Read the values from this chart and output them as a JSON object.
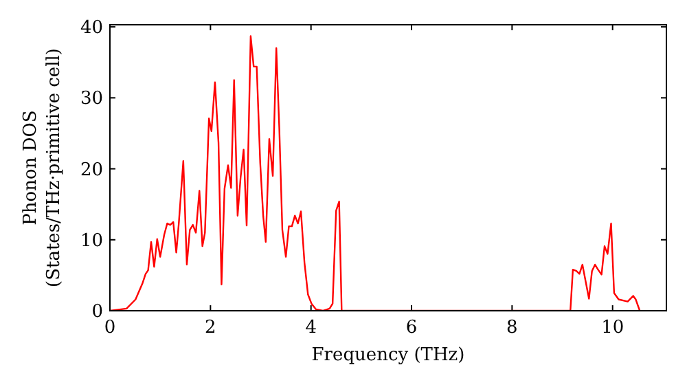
{
  "chart_data": {
    "type": "line",
    "xlabel": "Frequency (THz)",
    "ylabel": "Phonon DOS\n(States/THz·primitive cell)",
    "xlim": [
      0,
      11.07
    ],
    "ylim": [
      0,
      40.3
    ],
    "xticks": [
      0,
      2,
      4,
      6,
      8,
      10
    ],
    "yticks": [
      0,
      10,
      20,
      30,
      40
    ],
    "grid": false,
    "marker": "none",
    "line_style": "solid",
    "series": [
      {
        "color": "#ff0000",
        "x": [
          0,
          0.33,
          0.51,
          0.65,
          0.71,
          0.76,
          0.82,
          0.88,
          0.94,
          1.0,
          1.08,
          1.14,
          1.2,
          1.26,
          1.32,
          1.37,
          1.46,
          1.53,
          1.59,
          1.65,
          1.71,
          1.78,
          1.84,
          1.89,
          1.97,
          2.02,
          2.09,
          2.16,
          2.22,
          2.28,
          2.35,
          2.41,
          2.47,
          2.54,
          2.6,
          2.66,
          2.72,
          2.8,
          2.86,
          2.92,
          2.99,
          3.05,
          3.1,
          3.17,
          3.24,
          3.31,
          3.37,
          3.43,
          3.5,
          3.56,
          3.62,
          3.68,
          3.74,
          3.8,
          3.87,
          3.94,
          4.01,
          4.1,
          4.24,
          4.37,
          4.43,
          4.5,
          4.56,
          4.61,
          9.16,
          9.21,
          9.28,
          9.34,
          9.4,
          9.53,
          9.59,
          9.65,
          9.71,
          9.78,
          9.84,
          9.9,
          9.97,
          10.03,
          10.12,
          10.3,
          10.41,
          10.46,
          10.54
        ],
        "values": [
          0,
          0.3,
          1.6,
          3.9,
          5.2,
          5.7,
          9.7,
          6.2,
          10.1,
          7.6,
          10.7,
          12.3,
          12.1,
          12.5,
          8.2,
          12.3,
          21.1,
          6.5,
          11.4,
          12.1,
          11.0,
          16.9,
          9.1,
          11.0,
          27.1,
          25.3,
          32.2,
          23.7,
          3.7,
          17.2,
          20.5,
          17.3,
          32.5,
          13.4,
          18.8,
          22.7,
          12.0,
          38.7,
          34.4,
          34.4,
          20.8,
          13.3,
          9.7,
          24.2,
          19.0,
          37.0,
          25.6,
          11.4,
          7.6,
          11.9,
          11.9,
          13.4,
          12.3,
          14.0,
          6.8,
          2.3,
          1.0,
          0.2,
          0,
          0.3,
          1.0,
          14.1,
          15.4,
          0,
          0,
          5.8,
          5.6,
          5.2,
          6.5,
          1.7,
          5.6,
          6.5,
          5.8,
          5.1,
          9.1,
          8.0,
          12.3,
          2.5,
          1.6,
          1.3,
          2.1,
          1.6,
          0
        ]
      }
    ]
  }
}
